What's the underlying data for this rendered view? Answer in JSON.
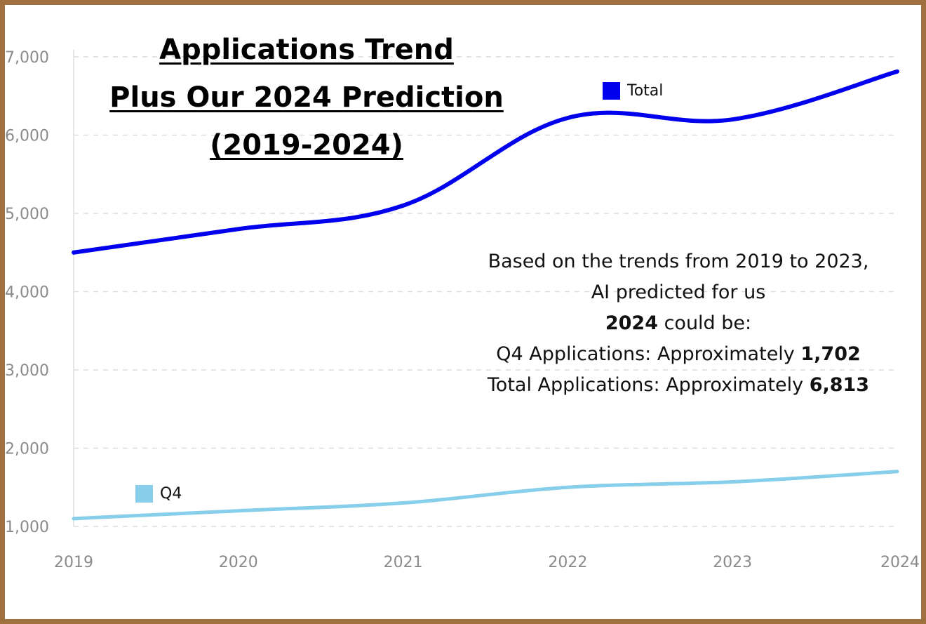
{
  "chart_data": {
    "type": "line",
    "title": [
      "Applications Trend",
      "Plus Our 2024 Prediction",
      "(2019-2024)"
    ],
    "x": [
      "2019",
      "2020",
      "2021",
      "2022",
      "2023",
      "2024"
    ],
    "ylim": [
      1000,
      7000
    ],
    "yticks": [
      1000,
      2000,
      3000,
      4000,
      5000,
      6000,
      7000
    ],
    "ytick_labels": [
      "1,000",
      "2,000",
      "3,000",
      "4,000",
      "5,000",
      "6,000",
      "7,000"
    ],
    "grid": true,
    "series": [
      {
        "name": "Total",
        "color": "#0000ee",
        "values": [
          4500,
          4800,
          5100,
          6220,
          6200,
          6813
        ]
      },
      {
        "name": "Q4",
        "color": "#87ceeb",
        "values": [
          1100,
          1200,
          1300,
          1500,
          1570,
          1702
        ]
      }
    ]
  },
  "annotation": {
    "line1": "Based on the trends from 2019 to 2023,",
    "line2": "AI predicted for us",
    "line3_bold": "2024",
    "line3_rest": " could be:",
    "line4_text": "Q4 Applications: Approximately ",
    "line4_value": "1,702",
    "line5_text": "Total Applications: Approximately ",
    "line5_value": "6,813"
  },
  "frame_color": "#a0703f"
}
